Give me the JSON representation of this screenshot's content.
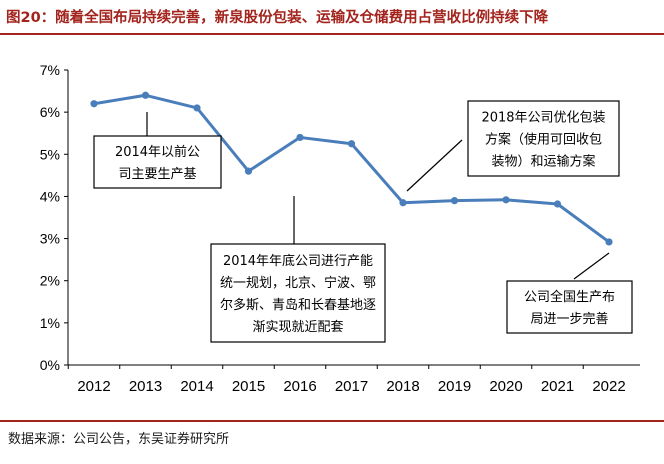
{
  "figure": {
    "title": "图20：随着全国布局持续完善，新泉股份包装、运输及仓储费用占营收比例持续下降",
    "source": "数据来源：公司公告，东吴证券研究所"
  },
  "colors": {
    "title": "#a3231d",
    "line": "#4a7ebb",
    "axis": "#000000"
  },
  "chart_data": {
    "type": "line",
    "x": [
      "2012",
      "2013",
      "2014",
      "2015",
      "2016",
      "2017",
      "2018",
      "2019",
      "2020",
      "2021",
      "2022"
    ],
    "series": [
      {
        "values": [
          6.2,
          6.4,
          6.1,
          4.6,
          5.4,
          5.25,
          3.85,
          3.9,
          3.92,
          3.82,
          2.92
        ]
      }
    ],
    "y_ticks": [
      "0%",
      "1%",
      "2%",
      "3%",
      "4%",
      "5%",
      "6%",
      "7%"
    ],
    "ylim": [
      0,
      7
    ],
    "y_unit": "%",
    "grid": false,
    "annotations": [
      {
        "point": "2013",
        "lines": [
          "2014年以前公",
          "司主要生产基"
        ]
      },
      {
        "point": "2015",
        "lines": [
          "2014年年底公司进行产能",
          "统一规划，北京、宁波、鄂",
          "尔多斯、青岛和长春基地逐",
          "渐实现就近配套"
        ]
      },
      {
        "point": "2018",
        "lines": [
          "2018年公司优化包装",
          "方案（使用可回收包",
          "装物）和运输方案"
        ]
      },
      {
        "point": "2022",
        "lines": [
          "公司全国生产布",
          "局进一步完善"
        ]
      }
    ]
  }
}
